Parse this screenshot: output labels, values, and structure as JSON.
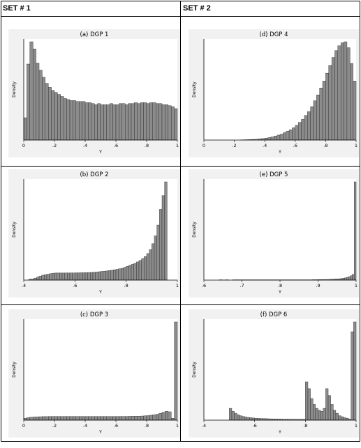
{
  "headers": {
    "set1": "SET # 1",
    "set2": "SET # 2"
  },
  "ylabel": "Density",
  "xlabel": "Y",
  "colors": {
    "bar": "#8c8c8c",
    "plot_bg": "#f1f1f1",
    "frame": "#000000",
    "grid_line": "#000000"
  },
  "chart_data": [
    {
      "type": "bar",
      "title": "(a) DGP 1",
      "xlabel": "Y",
      "ylabel": "Density",
      "xlim": [
        0,
        1
      ],
      "ticks": [
        0,
        0.2,
        0.4,
        0.6,
        0.8,
        1
      ],
      "tick_labels": [
        "0",
        ".2",
        ".4",
        ".6",
        ".8",
        "1"
      ],
      "bin_start": 0,
      "bin_width": 0.02,
      "values": [
        0.22,
        0.75,
        0.97,
        0.9,
        0.76,
        0.69,
        0.62,
        0.56,
        0.52,
        0.49,
        0.47,
        0.45,
        0.43,
        0.41,
        0.4,
        0.39,
        0.39,
        0.38,
        0.38,
        0.38,
        0.37,
        0.37,
        0.36,
        0.35,
        0.36,
        0.35,
        0.35,
        0.35,
        0.36,
        0.35,
        0.35,
        0.36,
        0.36,
        0.35,
        0.36,
        0.36,
        0.37,
        0.36,
        0.37,
        0.37,
        0.36,
        0.37,
        0.37,
        0.36,
        0.36,
        0.35,
        0.35,
        0.34,
        0.33,
        0.31
      ]
    },
    {
      "type": "bar",
      "title": "(b) DGP 2",
      "xlabel": "Y",
      "ylabel": "Density",
      "xlim": [
        0.4,
        1
      ],
      "ticks": [
        0.4,
        0.6,
        0.8,
        1
      ],
      "tick_labels": [
        ".4",
        ".6",
        ".8",
        "1"
      ],
      "bin_start": 0.42,
      "bin_width": 0.01,
      "values": [
        0.01,
        0.01,
        0.02,
        0.03,
        0.04,
        0.05,
        0.055,
        0.06,
        0.065,
        0.07,
        0.072,
        0.072,
        0.072,
        0.072,
        0.073,
        0.073,
        0.073,
        0.073,
        0.074,
        0.074,
        0.075,
        0.075,
        0.076,
        0.077,
        0.078,
        0.08,
        0.082,
        0.085,
        0.088,
        0.09,
        0.093,
        0.097,
        0.1,
        0.105,
        0.11,
        0.115,
        0.12,
        0.13,
        0.14,
        0.15,
        0.16,
        0.17,
        0.185,
        0.2,
        0.22,
        0.24,
        0.27,
        0.31,
        0.37,
        0.45,
        0.56,
        0.72,
        0.86,
        1.0
      ]
    },
    {
      "type": "bar",
      "title": "(c) DGP 3",
      "xlabel": "Y",
      "ylabel": "Density",
      "xlim": [
        0,
        1
      ],
      "ticks": [
        0,
        0.2,
        0.4,
        0.6,
        0.8,
        1
      ],
      "tick_labels": [
        "0",
        ".2",
        ".4",
        ".6",
        ".8",
        "1"
      ],
      "bin_start": 0,
      "bin_width": 0.02,
      "values": [
        0.02,
        0.025,
        0.03,
        0.032,
        0.034,
        0.035,
        0.036,
        0.036,
        0.037,
        0.037,
        0.037,
        0.037,
        0.037,
        0.037,
        0.037,
        0.037,
        0.037,
        0.037,
        0.037,
        0.037,
        0.037,
        0.037,
        0.037,
        0.037,
        0.037,
        0.037,
        0.037,
        0.037,
        0.037,
        0.037,
        0.037,
        0.038,
        0.038,
        0.038,
        0.039,
        0.04,
        0.04,
        0.041,
        0.042,
        0.044,
        0.046,
        0.05,
        0.055,
        0.06,
        0.07,
        0.08,
        0.09,
        0.085,
        0.02,
        1.0
      ]
    },
    {
      "type": "bar",
      "title": "(d) DGP 4",
      "xlabel": "Y",
      "ylabel": "Density",
      "xlim": [
        0,
        1
      ],
      "ticks": [
        0,
        0.2,
        0.4,
        0.6,
        0.8,
        1
      ],
      "tick_labels": [
        "0",
        ".2",
        ".4",
        ".6",
        ".8",
        "1"
      ],
      "bin_start": 0.24,
      "bin_width": 0.02,
      "values": [
        0.002,
        0.003,
        0.004,
        0.005,
        0.007,
        0.009,
        0.012,
        0.015,
        0.02,
        0.025,
        0.032,
        0.04,
        0.05,
        0.06,
        0.075,
        0.09,
        0.105,
        0.125,
        0.15,
        0.18,
        0.21,
        0.25,
        0.29,
        0.34,
        0.4,
        0.46,
        0.53,
        0.6,
        0.68,
        0.76,
        0.84,
        0.91,
        0.96,
        0.99,
        1.0,
        0.94,
        0.78,
        0.6
      ]
    },
    {
      "type": "bar",
      "title": "(e) DGP 5",
      "xlabel": "Y",
      "ylabel": "Density",
      "xlim": [
        0.6,
        1
      ],
      "ticks": [
        0.6,
        0.7,
        0.8,
        0.9,
        1
      ],
      "tick_labels": [
        ".6",
        ".7",
        ".8",
        ".9",
        "1"
      ],
      "bin_start": 0.64,
      "bin_width": 0.005,
      "values": [
        0.003,
        0.003,
        0,
        0.003,
        0.003,
        0,
        0,
        0.003,
        0.003,
        0.003,
        0.003,
        0.003,
        0.003,
        0.003,
        0.003,
        0.003,
        0.003,
        0.003,
        0.003,
        0.003,
        0.003,
        0.003,
        0.003,
        0.003,
        0.003,
        0.003,
        0.003,
        0.003,
        0.003,
        0.003,
        0.003,
        0.003,
        0.003,
        0.003,
        0.003,
        0.003,
        0.003,
        0.003,
        0.003,
        0.003,
        0.003,
        0.003,
        0.003,
        0.003,
        0.003,
        0.003,
        0.003,
        0.003,
        0.003,
        0.004,
        0.004,
        0.004,
        0.005,
        0.005,
        0.005,
        0.006,
        0.006,
        0.007,
        0.008,
        0.009,
        0.01,
        0.011,
        0.012,
        0.014,
        0.016,
        0.019,
        0.023,
        0.028,
        0.035,
        0.045,
        0.06,
        1.0
      ]
    },
    {
      "type": "bar",
      "title": "(f) DGP 6",
      "xlabel": "Y",
      "ylabel": "Density",
      "xlim": [
        0.4,
        1
      ],
      "ticks": [
        0.4,
        0.6,
        0.8,
        1
      ],
      "tick_labels": [
        ".4",
        ".6",
        ".8",
        "1"
      ],
      "bin_start": 0.5,
      "bin_width": 0.01,
      "values": [
        0.12,
        0.09,
        0.07,
        0.055,
        0.045,
        0.038,
        0.032,
        0.028,
        0.025,
        0.022,
        0.02,
        0.018,
        0.017,
        0.016,
        0.015,
        0.014,
        0.013,
        0.012,
        0.012,
        0.011,
        0.011,
        0.01,
        0.01,
        0.01,
        0.009,
        0.009,
        0.009,
        0.009,
        0.009,
        0.009,
        0.39,
        0.32,
        0.22,
        0.16,
        0.12,
        0.1,
        0.09,
        0.12,
        0.32,
        0.25,
        0.16,
        0.1,
        0.07,
        0.045,
        0.035,
        0.025,
        0.02,
        0.01,
        0.9,
        1.0
      ]
    }
  ]
}
